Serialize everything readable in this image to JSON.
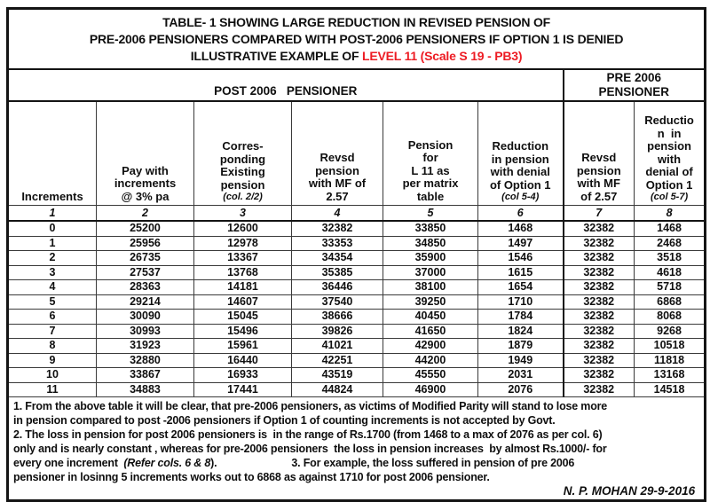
{
  "title": {
    "line1": "TABLE- 1 SHOWING LARGE REDUCTION IN REVISED PENSION OF",
    "line2": "PRE-2006 PENSIONERS COMPARED WITH POST-2006 PENSIONERS IF OPTION 1 IS DENIED",
    "line3_prefix": "ILLUSTRATIVE EXAMPLE OF ",
    "line3_highlight": "LEVEL 11 (Scale S 19 - PB3)",
    "highlight_color": "#ed1c24"
  },
  "groups": {
    "post": "POST 2006   PENSIONER",
    "pre_line1": "PRE 2006",
    "pre_line2": "PENSIONER"
  },
  "table": {
    "columns": [
      {
        "id": "1",
        "lines": [
          "Increments"
        ],
        "note": ""
      },
      {
        "id": "2",
        "lines": [
          "Pay with",
          "increments",
          "@ 3% pa"
        ],
        "note": ""
      },
      {
        "id": "3",
        "lines": [
          "Corres-",
          "ponding",
          "Existing",
          "pension"
        ],
        "note": "(col. 2/2)"
      },
      {
        "id": "4",
        "lines": [
          "Revsd",
          "pension",
          "with MF of",
          "2.57"
        ],
        "note": ""
      },
      {
        "id": "5",
        "lines": [
          "Pension",
          "for",
          "L 11 as",
          "per matrix",
          "table"
        ],
        "note": ""
      },
      {
        "id": "6",
        "lines": [
          "Reduction",
          "in pension",
          "with denial",
          "of Option 1"
        ],
        "note": "(col 5-4)"
      },
      {
        "id": "7",
        "lines": [
          "Revsd",
          "pension",
          "with MF",
          "of 2.57"
        ],
        "note": ""
      },
      {
        "id": "8",
        "lines": [
          "Reductio",
          "n  in",
          "pension",
          "with",
          "denial of",
          "Option 1"
        ],
        "note": "(col 5-7)"
      }
    ],
    "rows": [
      [
        "0",
        "25200",
        "12600",
        "32382",
        "33850",
        "1468",
        "32382",
        "1468"
      ],
      [
        "1",
        "25956",
        "12978",
        "33353",
        "34850",
        "1497",
        "32382",
        "2468"
      ],
      [
        "2",
        "26735",
        "13367",
        "34354",
        "35900",
        "1546",
        "32382",
        "3518"
      ],
      [
        "3",
        "27537",
        "13768",
        "35385",
        "37000",
        "1615",
        "32382",
        "4618"
      ],
      [
        "4",
        "28363",
        "14181",
        "36446",
        "38100",
        "1654",
        "32382",
        "5718"
      ],
      [
        "5",
        "29214",
        "14607",
        "37540",
        "39250",
        "1710",
        "32382",
        "6868"
      ],
      [
        "6",
        "30090",
        "15045",
        "38666",
        "40450",
        "1784",
        "32382",
        "8068"
      ],
      [
        "7",
        "30993",
        "15496",
        "39826",
        "41650",
        "1824",
        "32382",
        "9268"
      ],
      [
        "8",
        "31923",
        "15961",
        "41021",
        "42900",
        "1879",
        "32382",
        "10518"
      ],
      [
        "9",
        "32880",
        "16440",
        "42251",
        "44200",
        "1949",
        "32382",
        "11818"
      ],
      [
        "10",
        "33867",
        "16933",
        "43519",
        "45550",
        "2031",
        "32382",
        "13168"
      ],
      [
        "11",
        "34883",
        "17441",
        "44824",
        "46900",
        "2076",
        "32382",
        "14518"
      ]
    ]
  },
  "notes": {
    "lines": [
      [
        {
          "t": "1. From the above table it will be clear, that pre-2006 pensioners, as victims of Modified Parity will stand to lose more"
        }
      ],
      [
        {
          "t": "in pension compared to post -2006 pensioners if Option 1 of counting increments is not accepted by Govt."
        }
      ],
      [
        {
          "t": "2. The loss in pension for post 2006 pensioners is  in the range of Rs.1700 (from 1468 to a max of 2076 as per col. 6)"
        }
      ],
      [
        {
          "t": "only and is nearly constant , whereas for pre-2006 pensioners  the loss in pension increases  by almost Rs.1000/- for"
        }
      ],
      [
        {
          "t": "every one increment  "
        },
        {
          "t": "(Refer cols. 6 & 8",
          "i": true
        },
        {
          "t": ")."
        },
        {
          "t": "3. For example, the loss suffered in pension of pre 2006",
          "gap": true
        }
      ],
      [
        {
          "t": "pensioner in losinng 5 increments works out to 6868 as against 1710 for post 2006 pensioner."
        }
      ]
    ]
  },
  "signature": "N. P. MOHAN 29-9-2016"
}
